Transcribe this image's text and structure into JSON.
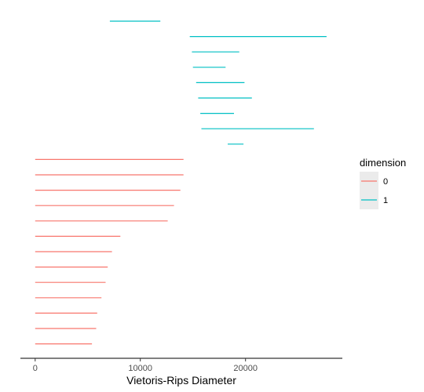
{
  "chart_data": {
    "type": "barcode",
    "xlabel": "Vietoris-Rips Diameter",
    "x_ticks": [
      0,
      10000,
      20000
    ],
    "x_tick_labels": [
      "0",
      "10000",
      "20000"
    ],
    "xlim": [
      -1400,
      29200
    ],
    "grid": false,
    "legend": {
      "title": "dimension",
      "placement": "right",
      "entries": [
        {
          "label": "0",
          "color": "#F8766D"
        },
        {
          "label": "1",
          "color": "#00BFC4"
        }
      ]
    },
    "series": [
      {
        "name": "1",
        "color": "#00BFC4",
        "bars": [
          {
            "birth": 7100,
            "death": 11900
          },
          {
            "birth": 14700,
            "death": 27700
          },
          {
            "birth": 14900,
            "death": 19400
          },
          {
            "birth": 15000,
            "death": 18100
          },
          {
            "birth": 15300,
            "death": 19900
          },
          {
            "birth": 15500,
            "death": 20600
          },
          {
            "birth": 15700,
            "death": 18900
          },
          {
            "birth": 15800,
            "death": 26500
          },
          {
            "birth": 18300,
            "death": 19800
          }
        ]
      },
      {
        "name": "0",
        "color": "#F8766D",
        "bars": [
          {
            "birth": 0,
            "death": 14100
          },
          {
            "birth": 0,
            "death": 14100
          },
          {
            "birth": 0,
            "death": 13800
          },
          {
            "birth": 0,
            "death": 13200
          },
          {
            "birth": 0,
            "death": 12600
          },
          {
            "birth": 0,
            "death": 8100
          },
          {
            "birth": 0,
            "death": 7300
          },
          {
            "birth": 0,
            "death": 6900
          },
          {
            "birth": 0,
            "death": 6700
          },
          {
            "birth": 0,
            "death": 6300
          },
          {
            "birth": 0,
            "death": 5900
          },
          {
            "birth": 0,
            "death": 5800
          },
          {
            "birth": 0,
            "death": 5400
          }
        ]
      }
    ]
  }
}
